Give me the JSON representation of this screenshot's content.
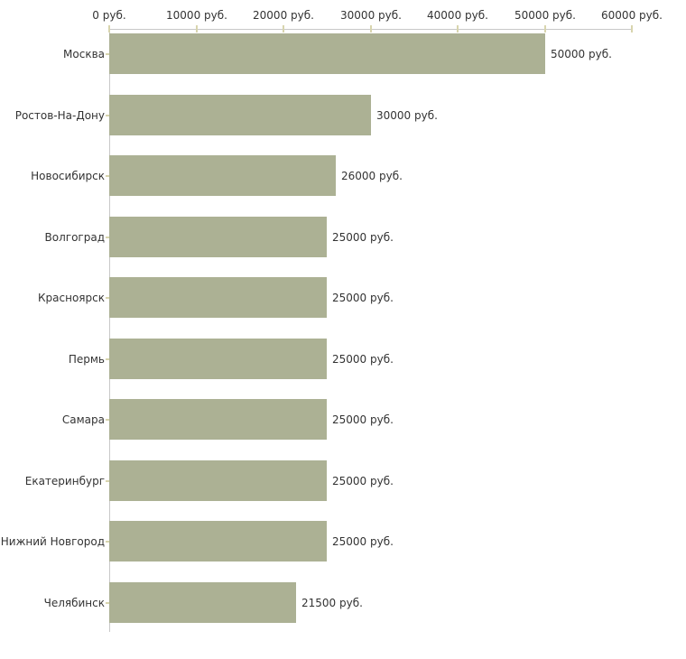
{
  "chart_data": {
    "type": "bar",
    "orientation": "horizontal",
    "title": "",
    "xlabel": "",
    "ylabel": "",
    "unit_suffix": " руб.",
    "categories": [
      "Москва",
      "Ростов-На-Дону",
      "Новосибирск",
      "Волгоград",
      "Красноярск",
      "Пермь",
      "Самара",
      "Екатеринбург",
      "Нижний Новгород",
      "Челябинск"
    ],
    "values": [
      50000,
      30000,
      26000,
      25000,
      25000,
      25000,
      25000,
      25000,
      25000,
      21500
    ],
    "bar_value_labels": [
      "50000 руб.",
      "30000 руб.",
      "26000 руб.",
      "25000 руб.",
      "25000 руб.",
      "25000 руб.",
      "25000 руб.",
      "25000 руб.",
      "25000 руб.",
      "21500 руб."
    ],
    "x_axis": {
      "position": "top",
      "xlim": [
        0,
        60000
      ],
      "ticks": [
        {
          "value": 0,
          "label": "0 руб."
        },
        {
          "value": 10000,
          "label": "10000 руб."
        },
        {
          "value": 20000,
          "label": "20000 руб."
        },
        {
          "value": 30000,
          "label": "30000 руб."
        },
        {
          "value": 40000,
          "label": "40000 руб."
        },
        {
          "value": 50000,
          "label": "50000 руб."
        },
        {
          "value": 60000,
          "label": "60000 руб."
        }
      ]
    },
    "grid": false,
    "legend": null,
    "colors": {
      "bar": "#acb194",
      "axis_line": "#c8c8c8",
      "tick_mark": "#d8d5ae",
      "text": "#333333",
      "background": "#ffffff"
    }
  }
}
